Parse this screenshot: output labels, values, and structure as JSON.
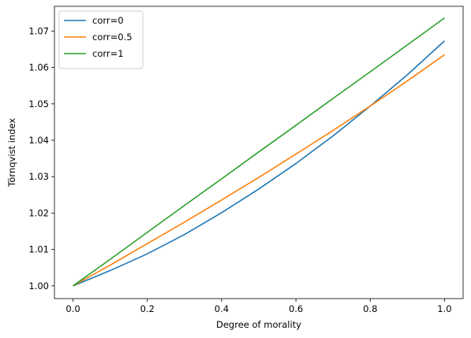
{
  "chart_data": {
    "type": "line",
    "title": "",
    "xlabel": "Degree of morality",
    "ylabel": "Törnqvist index",
    "xlim": [
      -0.05,
      1.05
    ],
    "ylim": [
      0.9965,
      1.0768
    ],
    "xticks": [
      0.0,
      0.2,
      0.4,
      0.6,
      0.8,
      1.0
    ],
    "xtick_labels": [
      "0.0",
      "0.2",
      "0.4",
      "0.6",
      "0.8",
      "1.0"
    ],
    "yticks": [
      1.0,
      1.01,
      1.02,
      1.03,
      1.04,
      1.05,
      1.06,
      1.07
    ],
    "ytick_labels": [
      "1.00",
      "1.01",
      "1.02",
      "1.03",
      "1.04",
      "1.05",
      "1.06",
      "1.07"
    ],
    "grid": false,
    "legend_position": "top-left",
    "x": [
      0.0,
      0.1,
      0.2,
      0.3,
      0.4,
      0.5,
      0.6,
      0.7,
      0.8,
      0.9,
      1.0
    ],
    "series": [
      {
        "name": "corr=0",
        "color": "#1f77b4",
        "values": [
          1.0,
          1.0042,
          1.0088,
          1.0141,
          1.0201,
          1.0266,
          1.0336,
          1.0412,
          1.0494,
          1.058,
          1.0673
        ]
      },
      {
        "name": "corr=0.5",
        "color": "#ff7f0e",
        "values": [
          1.0,
          1.0057,
          1.0116,
          1.0175,
          1.0236,
          1.0298,
          1.0362,
          1.0427,
          1.0494,
          1.0563,
          1.0635
        ]
      },
      {
        "name": "corr=1",
        "color": "#2ca02c",
        "values": [
          1.0,
          1.0073,
          1.0147,
          1.0221,
          1.0294,
          1.0368,
          1.0441,
          1.0515,
          1.0588,
          1.0662,
          1.0736
        ]
      }
    ]
  }
}
